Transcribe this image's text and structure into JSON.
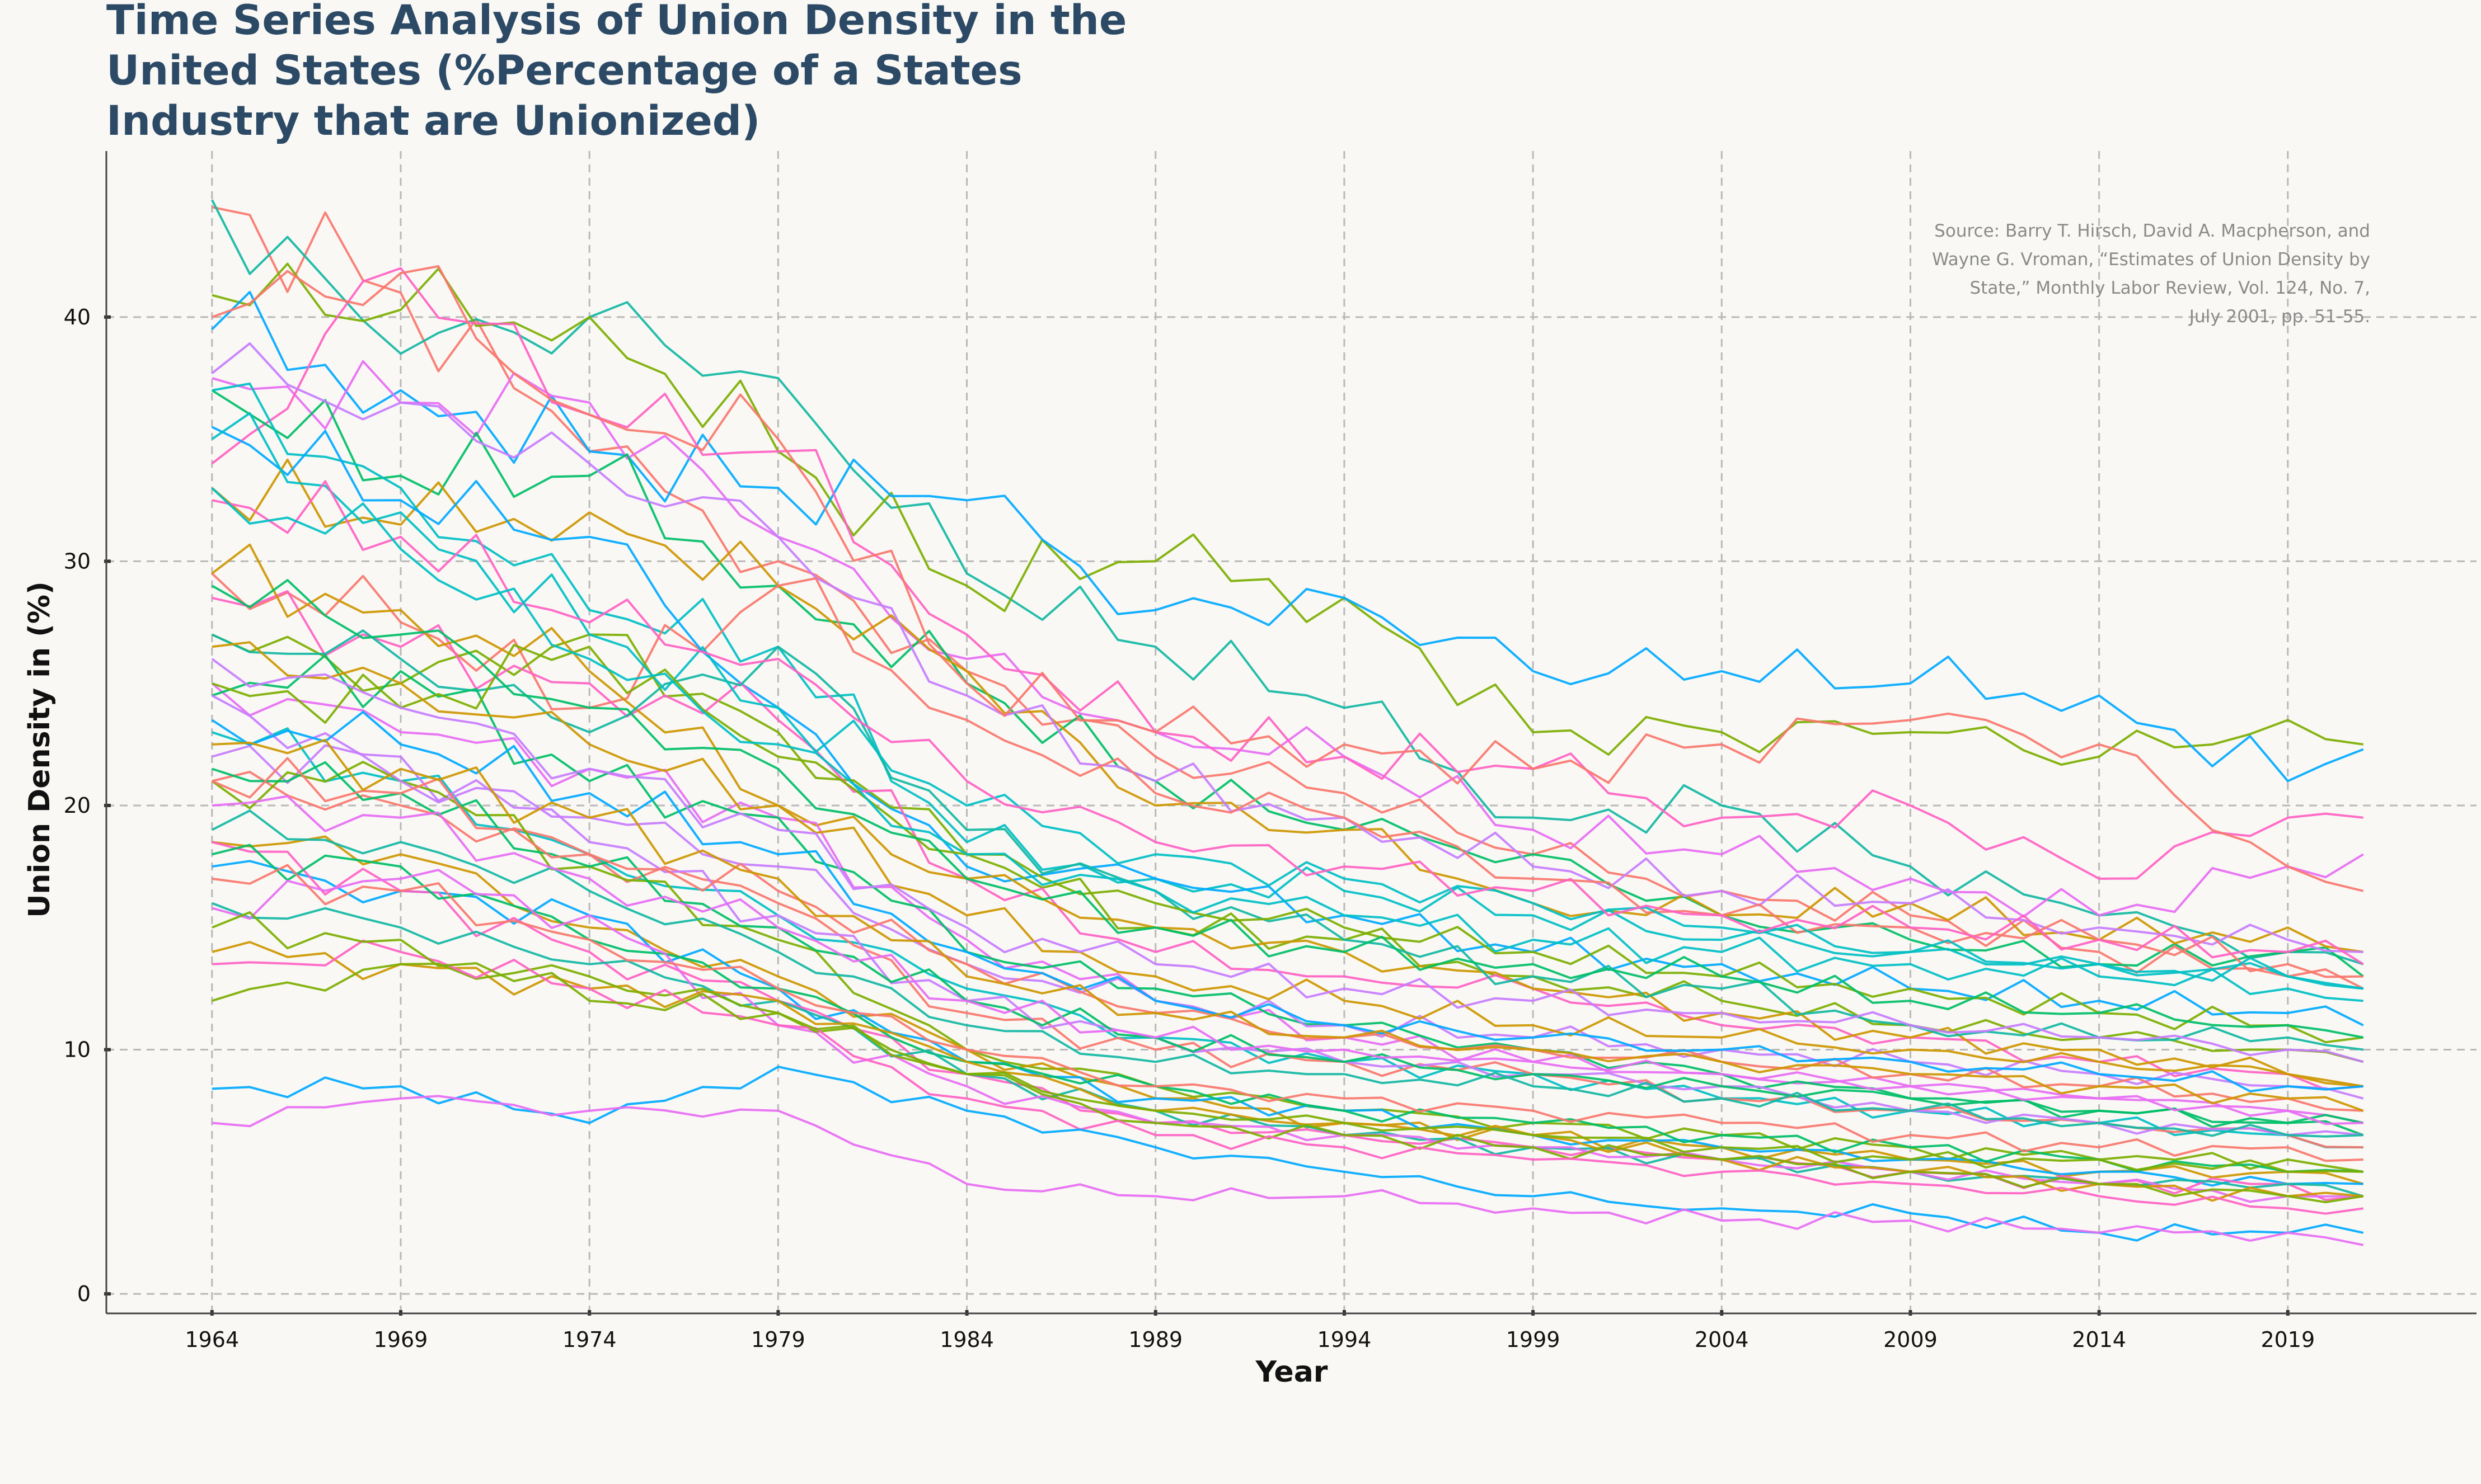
{
  "chart_data": {
    "type": "line",
    "title": "Time Series Analysis of Union Density in the United States (%Percentage of a States Industry that are Unionized)",
    "xlabel": "Year",
    "ylabel": "Union Density in (%)",
    "xlim": [
      1961.2,
      2024.0
    ],
    "ylim": [
      -0.8,
      46.8
    ],
    "xticks": [
      1964,
      1969,
      1974,
      1979,
      1984,
      1989,
      1994,
      1999,
      2004,
      2009,
      2014,
      2019
    ],
    "yticks": [
      0,
      10,
      20,
      30,
      40
    ],
    "grid": true,
    "legend": "none",
    "annotation": "Source: Barry T. Hirsch, David A. Macpherson, and Wayne G. Vroman, “Estimates of Union Density by State,” Monthly Labor Review, Vol. 124, No. 7, July 2001, pp. 51-55.",
    "annotation_lines": [
      "Source: Barry T. Hirsch, David A. Macpherson, and",
      "Wayne G. Vroman, “Estimates of Union Density by",
      "State,” Monthly Labor Review, Vol. 124, No. 7,",
      "July 2001, pp. 51-55."
    ],
    "series_keyframe_years": [
      1964,
      1969,
      1974,
      1979,
      1984,
      1989,
      1994,
      1999,
      2004,
      2009,
      2014,
      2019,
      2021
    ],
    "series": [
      {
        "color": "#f8766d",
        "values": [
          44.5,
          41.0,
          34.5,
          30.0,
          25.5,
          22.0,
          20.5,
          18.0,
          16.5,
          15.5,
          14.0,
          13.0,
          12.5
        ]
      },
      {
        "color": "#12b7a3",
        "values": [
          44.8,
          38.5,
          40.0,
          37.5,
          29.5,
          26.5,
          24.0,
          19.5,
          20.0,
          17.5,
          15.5,
          14.0,
          13.5
        ]
      },
      {
        "color": "#7cae00",
        "values": [
          40.9,
          40.3,
          40.0,
          34.5,
          29.0,
          30.0,
          28.5,
          23.0,
          23.0,
          23.0,
          22.0,
          23.5,
          22.5
        ]
      },
      {
        "color": "#00a9ff",
        "values": [
          39.5,
          37.0,
          34.5,
          33.0,
          32.5,
          28.0,
          28.5,
          25.5,
          25.5,
          25.0,
          24.5,
          21.0,
          22.3
        ]
      },
      {
        "color": "#e76bf3",
        "values": [
          37.5,
          36.5,
          36.5,
          31.0,
          26.0,
          23.0,
          22.0,
          19.0,
          18.0,
          17.0,
          15.5,
          17.5,
          18.0
        ]
      },
      {
        "color": "#ff61c3",
        "values": [
          34.0,
          42.0,
          36.0,
          34.5,
          27.0,
          23.0,
          22.0,
          21.5,
          19.5,
          20.0,
          17.0,
          19.5,
          19.5
        ]
      },
      {
        "color": "#00be67",
        "values": [
          37.0,
          33.5,
          33.5,
          29.0,
          25.0,
          21.0,
          19.0,
          18.0,
          15.5,
          14.5,
          13.5,
          14.0,
          13.0
        ]
      },
      {
        "color": "#cd9600",
        "values": [
          33.0,
          31.5,
          32.0,
          29.0,
          25.5,
          20.0,
          19.0,
          16.0,
          15.5,
          16.0,
          14.5,
          15.0,
          14.0
        ]
      },
      {
        "color": "#c77cff",
        "values": [
          37.7,
          36.5,
          34.0,
          31.0,
          24.5,
          21.0,
          19.5,
          17.5,
          16.5,
          16.0,
          15.0,
          14.5,
          14.0
        ]
      },
      {
        "color": "#00bfc4",
        "values": [
          37.0,
          33.0,
          28.0,
          26.5,
          18.5,
          17.0,
          16.5,
          15.5,
          14.5,
          14.0,
          13.5,
          13.0,
          12.5
        ]
      },
      {
        "color": "#f8766d",
        "values": [
          29.5,
          27.5,
          24.0,
          29.0,
          23.5,
          20.5,
          19.5,
          17.0,
          15.5,
          15.0,
          14.5,
          13.5,
          13.0
        ]
      },
      {
        "color": "#00a9ff",
        "values": [
          35.5,
          32.5,
          31.0,
          24.0,
          17.5,
          17.0,
          15.5,
          14.0,
          13.5,
          12.5,
          12.0,
          11.5,
          11.0
        ]
      },
      {
        "color": "#7cae00",
        "values": [
          27.0,
          25.0,
          27.0,
          23.0,
          18.0,
          15.0,
          14.5,
          13.0,
          12.0,
          11.0,
          10.5,
          10.0,
          9.5
        ]
      },
      {
        "color": "#ff61c3",
        "values": [
          28.5,
          26.5,
          25.0,
          23.5,
          17.0,
          14.0,
          13.0,
          12.5,
          11.0,
          10.5,
          9.5,
          9.0,
          8.5
        ]
      },
      {
        "color": "#cd9600",
        "values": [
          29.5,
          28.0,
          25.5,
          20.0,
          17.0,
          15.0,
          14.0,
          12.5,
          11.5,
          10.5,
          10.0,
          9.0,
          8.5
        ]
      },
      {
        "color": "#12b7a3",
        "values": [
          27.0,
          26.0,
          23.0,
          26.5,
          19.0,
          16.5,
          14.5,
          13.0,
          12.5,
          11.0,
          10.5,
          10.5,
          10.0
        ]
      },
      {
        "color": "#e76bf3",
        "values": [
          25.0,
          23.0,
          21.5,
          19.5,
          14.5,
          12.0,
          10.5,
          9.5,
          9.0,
          8.5,
          8.0,
          7.5,
          7.0
        ]
      },
      {
        "color": "#00be67",
        "values": [
          24.5,
          25.5,
          21.0,
          19.5,
          14.0,
          12.5,
          11.0,
          10.0,
          9.0,
          8.0,
          7.5,
          7.0,
          6.5
        ]
      },
      {
        "color": "#00bfc4",
        "values": [
          23.0,
          21.0,
          18.0,
          15.5,
          12.5,
          10.5,
          9.5,
          9.0,
          8.0,
          7.5,
          7.0,
          6.5,
          6.0
        ]
      },
      {
        "color": "#f8766d",
        "values": [
          21.0,
          20.0,
          18.0,
          16.0,
          11.5,
          10.0,
          9.5,
          9.0,
          8.0,
          7.5,
          7.0,
          6.5,
          6.0
        ]
      },
      {
        "color": "#c77cff",
        "values": [
          22.0,
          22.0,
          18.5,
          15.5,
          12.0,
          10.5,
          9.5,
          9.0,
          8.5,
          7.5,
          7.0,
          6.5,
          6.5
        ]
      },
      {
        "color": "#7cae00",
        "values": [
          21.0,
          21.0,
          17.5,
          14.5,
          10.0,
          8.5,
          7.5,
          7.0,
          6.5,
          6.0,
          5.5,
          5.5,
          5.0
        ]
      },
      {
        "color": "#cd9600",
        "values": [
          18.5,
          18.0,
          15.0,
          13.0,
          10.0,
          8.0,
          7.0,
          6.5,
          6.0,
          5.5,
          5.0,
          5.0,
          4.5
        ]
      },
      {
        "color": "#00a9ff",
        "values": [
          17.5,
          16.5,
          15.5,
          12.5,
          9.5,
          8.0,
          7.5,
          6.5,
          6.0,
          5.5,
          5.0,
          4.5,
          4.5
        ]
      },
      {
        "color": "#ff61c3",
        "values": [
          18.5,
          16.5,
          14.0,
          12.0,
          9.0,
          7.0,
          6.5,
          6.0,
          5.5,
          5.0,
          4.5,
          4.5,
          4.0
        ]
      },
      {
        "color": "#00be67",
        "values": [
          18.0,
          17.5,
          14.5,
          12.5,
          9.5,
          8.5,
          7.5,
          7.0,
          6.5,
          6.0,
          5.5,
          5.0,
          5.0
        ]
      },
      {
        "color": "#12b7a3",
        "values": [
          16.0,
          15.0,
          13.5,
          12.0,
          9.0,
          7.5,
          6.5,
          6.0,
          5.5,
          5.0,
          4.5,
          4.5,
          4.0
        ]
      },
      {
        "color": "#e76bf3",
        "values": [
          15.8,
          17.0,
          15.5,
          11.0,
          8.5,
          7.0,
          6.5,
          6.0,
          5.5,
          5.0,
          4.5,
          4.0,
          4.0
        ]
      },
      {
        "color": "#cd9600",
        "values": [
          14.0,
          13.5,
          12.5,
          12.0,
          9.5,
          7.5,
          7.0,
          6.5,
          5.5,
          5.0,
          4.5,
          4.0,
          4.0
        ]
      },
      {
        "color": "#7cae00",
        "values": [
          12.0,
          13.5,
          13.0,
          11.5,
          9.0,
          7.0,
          6.5,
          6.0,
          5.5,
          5.0,
          4.5,
          4.0,
          4.0
        ]
      },
      {
        "color": "#ff61c3",
        "values": [
          13.5,
          14.0,
          12.5,
          11.0,
          8.0,
          6.5,
          6.0,
          5.5,
          5.0,
          4.5,
          4.0,
          3.5,
          3.5
        ]
      },
      {
        "color": "#00a9ff",
        "values": [
          8.4,
          8.5,
          7.0,
          9.3,
          7.5,
          6.0,
          5.0,
          4.0,
          3.5,
          3.3,
          2.5,
          2.5,
          2.5
        ]
      },
      {
        "color": "#e76bf3",
        "values": [
          7.0,
          8.0,
          7.5,
          7.5,
          4.5,
          4.0,
          4.0,
          3.5,
          3.0,
          3.0,
          2.5,
          2.5,
          2.0
        ]
      },
      {
        "color": "#f8766d",
        "values": [
          40.0,
          41.8,
          36.0,
          35.0,
          25.0,
          23.0,
          22.5,
          21.5,
          22.5,
          23.5,
          22.5,
          17.5,
          16.5
        ]
      },
      {
        "color": "#00bfc4",
        "values": [
          35.0,
          32.0,
          27.0,
          24.0,
          20.0,
          18.0,
          17.0,
          16.0,
          15.0,
          14.0,
          13.5,
          13.0,
          12.5
        ]
      },
      {
        "color": "#7cae00",
        "values": [
          25.0,
          24.0,
          26.5,
          22.0,
          18.0,
          16.0,
          15.0,
          14.0,
          13.0,
          12.5,
          11.5,
          11.0,
          10.5
        ]
      },
      {
        "color": "#c77cff",
        "values": [
          24.5,
          21.0,
          19.5,
          17.5,
          13.5,
          12.0,
          11.0,
          10.5,
          10.0,
          9.5,
          9.0,
          8.5,
          8.0
        ]
      },
      {
        "color": "#00be67",
        "values": [
          21.5,
          20.5,
          17.5,
          15.0,
          12.0,
          10.5,
          9.5,
          9.0,
          8.5,
          8.0,
          7.5,
          7.0,
          7.0
        ]
      },
      {
        "color": "#f8766d",
        "values": [
          21.0,
          20.5,
          18.0,
          16.5,
          13.5,
          11.5,
          10.5,
          10.0,
          9.5,
          9.0,
          8.5,
          8.0,
          7.5
        ]
      },
      {
        "color": "#12b7a3",
        "values": [
          19.0,
          18.5,
          16.5,
          14.0,
          11.0,
          9.5,
          9.0,
          8.5,
          8.0,
          7.5,
          7.0,
          6.5,
          6.5
        ]
      },
      {
        "color": "#cd9600",
        "values": [
          26.5,
          25.0,
          22.5,
          20.0,
          15.5,
          13.0,
          12.0,
          11.0,
          10.5,
          10.0,
          9.5,
          9.0,
          8.5
        ]
      },
      {
        "color": "#00a9ff",
        "values": [
          23.5,
          22.5,
          20.5,
          18.0,
          14.0,
          12.0,
          11.0,
          10.5,
          10.0,
          9.5,
          9.0,
          8.5,
          8.5
        ]
      },
      {
        "color": "#ff61c3",
        "values": [
          32.5,
          31.0,
          27.5,
          26.0,
          21.0,
          18.5,
          17.5,
          16.5,
          15.5,
          15.0,
          14.5,
          14.0,
          13.5
        ]
      },
      {
        "color": "#00be67",
        "values": [
          29.0,
          27.0,
          24.0,
          21.5,
          17.0,
          15.0,
          14.0,
          13.5,
          13.0,
          12.0,
          11.5,
          11.0,
          10.5
        ]
      },
      {
        "color": "#e76bf3",
        "values": [
          20.0,
          19.5,
          17.0,
          15.0,
          12.0,
          10.5,
          10.0,
          9.5,
          9.0,
          8.5,
          8.0,
          7.5,
          7.0
        ]
      },
      {
        "color": "#7cae00",
        "values": [
          15.0,
          14.5,
          12.0,
          11.5,
          9.0,
          7.5,
          7.0,
          6.5,
          6.0,
          5.5,
          5.5,
          5.0,
          5.0
        ]
      },
      {
        "color": "#00bfc4",
        "values": [
          33.0,
          30.5,
          26.0,
          22.5,
          18.0,
          16.5,
          15.5,
          14.5,
          14.0,
          13.5,
          13.0,
          12.5,
          12.0
        ]
      },
      {
        "color": "#c77cff",
        "values": [
          26.0,
          24.0,
          21.5,
          19.0,
          15.0,
          13.5,
          12.5,
          12.0,
          11.5,
          11.0,
          10.5,
          10.0,
          9.5
        ]
      },
      {
        "color": "#cd9600",
        "values": [
          22.5,
          21.5,
          19.5,
          17.0,
          13.0,
          11.5,
          10.5,
          10.0,
          9.5,
          9.0,
          8.5,
          8.0,
          7.5
        ]
      },
      {
        "color": "#f8766d",
        "values": [
          17.0,
          16.5,
          14.5,
          12.5,
          10.0,
          8.5,
          8.0,
          7.5,
          7.0,
          6.5,
          6.0,
          6.0,
          5.5
        ]
      }
    ]
  }
}
